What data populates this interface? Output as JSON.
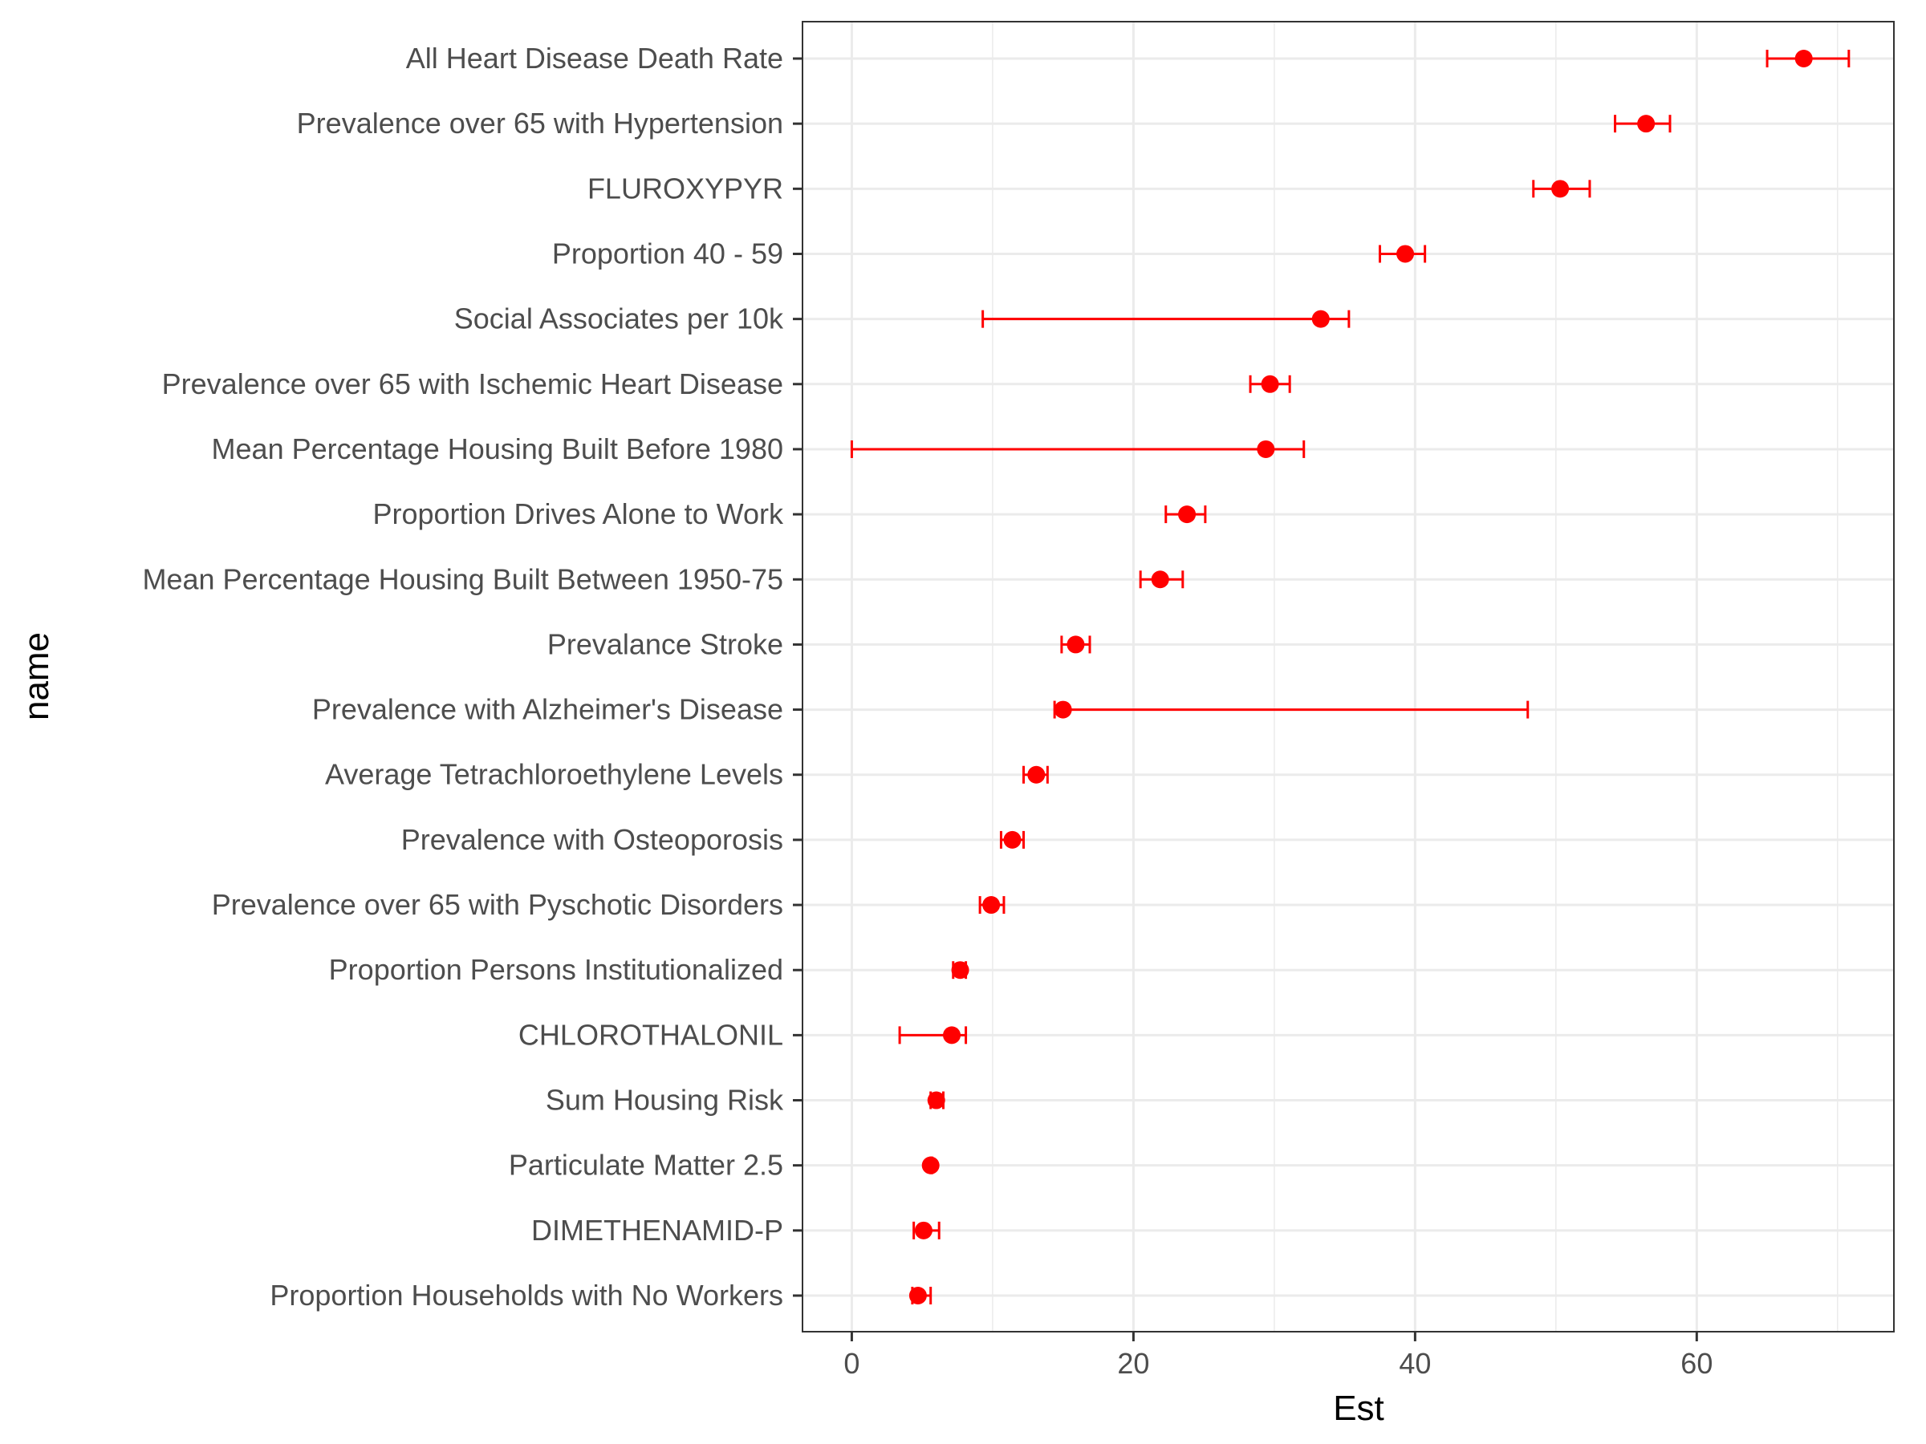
{
  "chart_data": {
    "type": "scatter",
    "subtype": "point-with-error-bars",
    "xlabel": "Est",
    "ylabel": "name",
    "xlim": [
      -3.5,
      74
    ],
    "x_ticks": [
      0,
      20,
      40,
      60
    ],
    "x_tick_labels": [
      "0",
      "20",
      "40",
      "60"
    ],
    "grid": true,
    "legend": "none",
    "colors": {
      "series": "#ff0000",
      "grid": "#ebebeb",
      "panel_border": "#333333"
    },
    "categories": [
      "All Heart Disease Death Rate",
      "Prevalence over 65 with Hypertension",
      "FLUROXYPYR",
      "Proportion 40 - 59",
      "Social Associates per 10k",
      "Prevalence over 65 with Ischemic Heart Disease",
      "Mean Percentage Housing Built Before 1980",
      "Proportion Drives Alone to Work",
      "Mean Percentage Housing Built Between 1950-75",
      "Prevalance Stroke",
      "Prevalence with Alzheimer's Disease",
      "Average Tetrachloroethylene Levels",
      "Prevalence with Osteoporosis",
      "Prevalence over 65 with Pyschotic Disorders",
      "Proportion Persons Institutionalized",
      "CHLOROTHALONIL",
      "Sum Housing Risk",
      "Particulate Matter 2.5",
      "DIMETHENAMID-P",
      "Proportion Households with No Workers"
    ],
    "points": [
      {
        "est": 67.6,
        "low": 65.0,
        "high": 70.8
      },
      {
        "est": 56.4,
        "low": 54.2,
        "high": 58.1
      },
      {
        "est": 50.3,
        "low": 48.4,
        "high": 52.4
      },
      {
        "est": 39.3,
        "low": 37.5,
        "high": 40.7
      },
      {
        "est": 33.3,
        "low": 9.3,
        "high": 35.3
      },
      {
        "est": 29.7,
        "low": 28.3,
        "high": 31.1
      },
      {
        "est": 29.4,
        "low": 0.0,
        "high": 32.1
      },
      {
        "est": 23.8,
        "low": 22.3,
        "high": 25.1
      },
      {
        "est": 21.9,
        "low": 20.5,
        "high": 23.5
      },
      {
        "est": 15.9,
        "low": 14.9,
        "high": 16.9
      },
      {
        "est": 15.0,
        "low": 14.4,
        "high": 48.0
      },
      {
        "est": 13.1,
        "low": 12.2,
        "high": 13.9
      },
      {
        "est": 11.4,
        "low": 10.6,
        "high": 12.2
      },
      {
        "est": 9.9,
        "low": 9.1,
        "high": 10.8
      },
      {
        "est": 7.7,
        "low": 7.2,
        "high": 8.1
      },
      {
        "est": 7.1,
        "low": 3.4,
        "high": 8.1
      },
      {
        "est": 6.0,
        "low": 5.6,
        "high": 6.5
      },
      {
        "est": 5.6,
        "low": 5.6,
        "high": 5.7
      },
      {
        "est": 5.1,
        "low": 4.4,
        "high": 6.2
      },
      {
        "est": 4.7,
        "low": 4.3,
        "high": 5.6
      }
    ]
  }
}
